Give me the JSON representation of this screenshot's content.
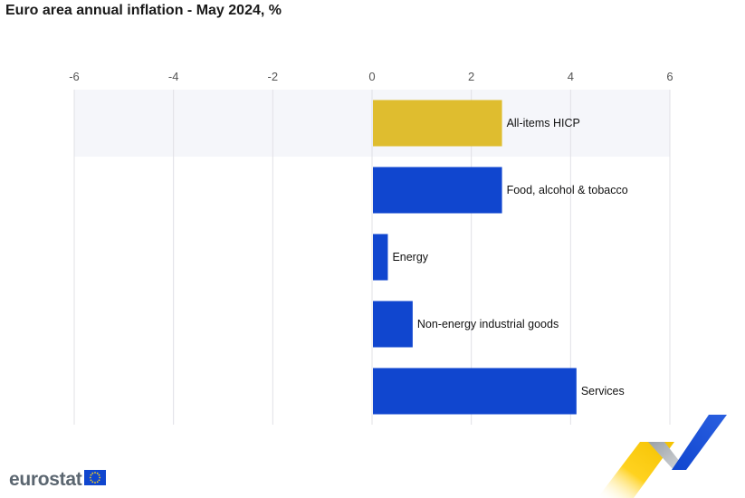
{
  "title": "Euro area annual inflation - May 2024, %",
  "logo": {
    "text": "eurostat",
    "flag_icon": "eu-flag-icon"
  },
  "colors": {
    "highlight": "#dfbd2f",
    "series": "#1046cf",
    "band": "#f5f6fa",
    "grid": "#e0e0e6"
  },
  "chart_data": {
    "type": "bar",
    "orientation": "horizontal",
    "title": "Euro area annual inflation - May 2024, %",
    "categories": [
      "All-items HICP",
      "Food, alcohol & tobacco",
      "Energy",
      "Non-energy industrial goods",
      "Services"
    ],
    "values": [
      2.6,
      2.6,
      0.3,
      0.8,
      4.1
    ],
    "highlighted_category": "All-items HICP",
    "xlim": [
      -6,
      6
    ],
    "xticks": [
      -6,
      -4,
      -2,
      0,
      2,
      4,
      6
    ],
    "xaxis_position": "top",
    "grid": true,
    "legend": "none"
  }
}
